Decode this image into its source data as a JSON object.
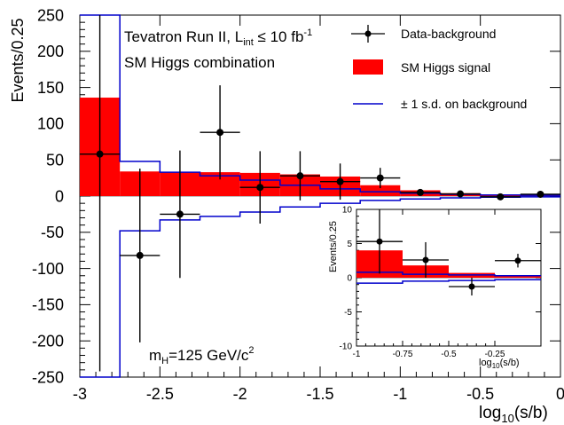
{
  "chart_data": [
    {
      "type": "histogram",
      "xlabel_main": "log",
      "xlabel_sub": "10",
      "xlabel_tail": "(s/b)",
      "ylabel": "Events/0.25",
      "xlim": [
        -3,
        0
      ],
      "ylim": [
        -250,
        250
      ],
      "x_ticks": [
        -3,
        -2.5,
        -2,
        -1.5,
        -1,
        -0.5,
        0
      ],
      "x_tick_labels": [
        "-3",
        "-2.5",
        "-2",
        "-1.5",
        "-1",
        "-0.5",
        "0"
      ],
      "y_ticks": [
        -250,
        -200,
        -150,
        -100,
        -50,
        0,
        50,
        100,
        150,
        200,
        250
      ],
      "y_tick_labels": [
        "-250",
        "-200",
        "-150",
        "-100",
        "-50",
        "0",
        "50",
        "100",
        "150",
        "200",
        "250"
      ],
      "bin_edges": [
        -3,
        -2.75,
        -2.5,
        -2.25,
        -2,
        -1.75,
        -1.5,
        -1.25,
        -1,
        -0.75,
        -0.5,
        -0.25,
        0
      ],
      "signal": [
        136,
        34,
        33,
        33,
        32,
        30,
        27,
        15,
        8,
        4,
        2,
        1
      ],
      "band_upper": [
        300,
        48,
        33,
        28,
        22,
        15,
        10,
        6,
        4,
        2.5,
        1.5,
        1
      ],
      "band_lower": [
        -300,
        -48,
        -33,
        -28,
        -22,
        -15,
        -10,
        -6,
        -4,
        -2.5,
        -1.5,
        -1
      ],
      "points": [
        {
          "x": -2.875,
          "y": 58,
          "err": 300,
          "xerr": 0.125
        },
        {
          "x": -2.625,
          "y": -82,
          "err": 120,
          "xerr": 0.125
        },
        {
          "x": -2.375,
          "y": -25,
          "err": 88,
          "xerr": 0.125
        },
        {
          "x": -2.125,
          "y": 88,
          "err": 65,
          "xerr": 0.125
        },
        {
          "x": -1.875,
          "y": 12,
          "err": 50,
          "xerr": 0.125
        },
        {
          "x": -1.625,
          "y": 28,
          "err": 34,
          "xerr": 0.125
        },
        {
          "x": -1.375,
          "y": 20,
          "err": 25,
          "xerr": 0.125
        },
        {
          "x": -1.125,
          "y": 25,
          "err": 14,
          "xerr": 0.125
        },
        {
          "x": -0.875,
          "y": 5,
          "err": 4,
          "xerr": 0.125
        },
        {
          "x": -0.625,
          "y": 3,
          "err": 2.5,
          "xerr": 0.125
        },
        {
          "x": -0.375,
          "y": -1,
          "err": 1.5,
          "xerr": 0.125
        },
        {
          "x": -0.125,
          "y": 2.5,
          "err": 1,
          "xerr": 0.125
        }
      ],
      "annotations": {
        "title_pre": "Tevatron Run II, L",
        "title_sub": "int",
        "title_mid": " ≤ 10 fb",
        "title_sup": "-1",
        "subtitle": "SM Higgs combination",
        "mass_pre": "m",
        "mass_sub": "H",
        "mass_mid": "=125 GeV/c",
        "mass_sup": "2"
      },
      "legend": [
        {
          "label": "Data-background",
          "style": "points"
        },
        {
          "label": "SM Higgs signal",
          "style": "fill"
        },
        {
          "label": "± 1 s.d. on background",
          "style": "line"
        }
      ],
      "colors": {
        "signal": "#ff0000",
        "band": "#0000cc",
        "data": "#000000"
      }
    },
    {
      "type": "histogram",
      "xlabel_main": "log",
      "xlabel_sub": "10",
      "xlabel_tail": "(s/b)",
      "ylabel": "Events/0.25",
      "xlim": [
        -1,
        0
      ],
      "ylim": [
        -10,
        10
      ],
      "x_ticks": [
        -1,
        -0.75,
        -0.5,
        -0.25
      ],
      "x_tick_labels": [
        "-1",
        "-0.75",
        "-0.5",
        "-0.25"
      ],
      "y_ticks": [
        -10,
        -5,
        0,
        5,
        10
      ],
      "y_tick_labels": [
        "-10",
        "-5",
        "0",
        "5",
        "10"
      ],
      "bin_edges": [
        -1,
        -0.75,
        -0.5,
        -0.25,
        0
      ],
      "signal": [
        4.0,
        1.8,
        0.7,
        0.3
      ],
      "band_upper": [
        0.8,
        0.5,
        0.4,
        0.3
      ],
      "band_lower": [
        -0.8,
        -0.5,
        -0.4,
        -0.3
      ],
      "points": [
        {
          "x": -0.875,
          "y": 5.3,
          "err": 4.7,
          "xerr": 0.125
        },
        {
          "x": -0.625,
          "y": 2.6,
          "err": 2.6,
          "xerr": 0.125
        },
        {
          "x": -0.375,
          "y": -1.3,
          "err": 1.3,
          "xerr": 0.125
        },
        {
          "x": -0.125,
          "y": 2.5,
          "err": 1.0,
          "xerr": 0.125
        }
      ]
    }
  ]
}
